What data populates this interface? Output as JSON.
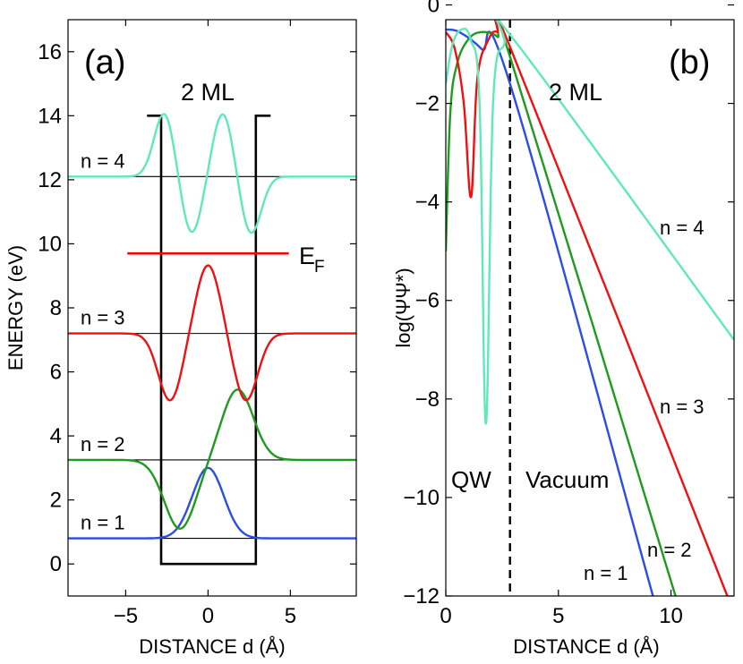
{
  "chart_data": [
    {
      "type": "line",
      "panel_label": "(a)",
      "annotation": "2 ML",
      "xlabel": "DISTANCE d (Å)",
      "ylabel": "ENERGY (eV)",
      "xlim": [
        -8.5,
        9
      ],
      "ylim": [
        -1,
        17
      ],
      "xticks": [
        -5,
        0,
        5
      ],
      "xtick_labels": [
        "−5",
        "0",
        "5"
      ],
      "yticks": [
        0,
        2,
        4,
        6,
        8,
        10,
        12,
        14,
        16
      ],
      "ytick_labels": [
        "0",
        "2",
        "4",
        "6",
        "8",
        "10",
        "12",
        "14",
        "16"
      ],
      "fermi_level": {
        "label": "E",
        "subscript": "F",
        "energy": 9.7,
        "x": [
          -4.9,
          4.9
        ],
        "color": "#ff0000"
      },
      "quantum_well": {
        "left": -2.85,
        "right": 2.9,
        "bottom": 0,
        "top": 14,
        "cap_left": -3.7,
        "cap_right": 3.8
      },
      "levels": [
        {
          "label": "n = 1",
          "energy": 0.8,
          "color": "#2b4ce6",
          "peaks": [
            [
              0,
              3.0
            ]
          ]
        },
        {
          "label": "n = 2",
          "energy": 3.25,
          "color": "#1e9b1e",
          "peaks": [
            [
              -1.7,
              1.1
            ],
            [
              1.8,
              5.45
            ]
          ]
        },
        {
          "label": "n = 3",
          "energy": 7.2,
          "color": "#ee1111",
          "peaks": [
            [
              -2.3,
              5.1
            ],
            [
              0,
              9.35
            ],
            [
              2.3,
              5.1
            ]
          ]
        },
        {
          "label": "n = 4",
          "energy": 12.1,
          "color": "#5fe9b9",
          "peaks": [
            [
              -2.65,
              14.1
            ],
            [
              -1.0,
              10.3
            ],
            [
              0.9,
              14.1
            ],
            [
              2.6,
              10.3
            ]
          ]
        }
      ]
    },
    {
      "type": "line",
      "panel_label": "(b)",
      "annotation": "2 ML",
      "xlabel": "DISTANCE d (Å)",
      "ylabel": "log(ΨΨ*)",
      "xlim": [
        0,
        12.8
      ],
      "ylim": [
        -12,
        -0.3
      ],
      "xticks": [
        0,
        5,
        10
      ],
      "xtick_labels": [
        "0",
        "5",
        "10"
      ],
      "yticks": [
        -12,
        -10,
        -8,
        -6,
        -4,
        -2,
        0
      ],
      "ytick_labels": [
        "−12",
        "−10",
        "−8",
        "−6",
        "−4",
        "−2",
        "0"
      ],
      "boundary_x": 2.85,
      "region_labels": [
        "QW",
        "Vacuum"
      ],
      "series": [
        {
          "name": "n = 1",
          "color": "#2b4ce6",
          "x": [
            0,
            0.6,
            1.6,
            2.85,
            9.2
          ],
          "y": [
            -0.5,
            -0.55,
            -0.9,
            -1.6,
            -12.0
          ]
        },
        {
          "name": "n = 2",
          "color": "#1e9b1e",
          "x": [
            0,
            0.2,
            0.5,
            1.0,
            1.6,
            2.3,
            2.85,
            10.2
          ],
          "y": [
            -5.0,
            -2.2,
            -1.2,
            -0.7,
            -0.55,
            -0.65,
            -1.05,
            -12.0
          ]
        },
        {
          "name": "n = 3",
          "color": "#ee1111",
          "x": [
            0,
            0.4,
            0.8,
            1.12,
            1.4,
            1.9,
            2.3,
            2.85,
            12.5
          ],
          "y": [
            -0.55,
            -0.9,
            -2.0,
            -3.9,
            -1.5,
            -0.7,
            -0.55,
            -0.85,
            -12.0
          ]
        },
        {
          "name": "n = 4",
          "color": "#5fe9b9",
          "x": [
            0,
            0.3,
            0.7,
            1.1,
            1.5,
            1.78,
            2.1,
            2.6,
            3.1,
            12.8
          ],
          "y": [
            -1.6,
            -0.8,
            -0.5,
            -0.7,
            -2.0,
            -8.5,
            -2.0,
            -0.8,
            -0.75,
            -6.8
          ]
        }
      ]
    }
  ]
}
